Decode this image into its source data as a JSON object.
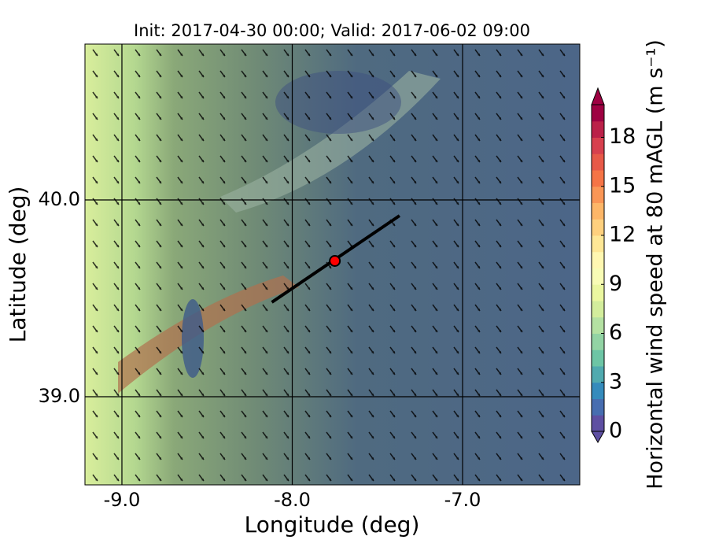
{
  "chart_data": {
    "type": "contourf-map",
    "title": "Init: 2017-04-30 00:00; Valid: 2017-06-02 09:00",
    "xlabel": "Longitude (deg)",
    "ylabel": "Latitude (deg)",
    "xlim": [
      -9.217,
      -6.312
    ],
    "ylim": [
      38.552,
      40.792
    ],
    "xticks": [
      {
        "value": -9,
        "label": "-9.0"
      },
      {
        "value": -8,
        "label": "-8.0"
      },
      {
        "value": -7,
        "label": "-7.0"
      }
    ],
    "yticks": [
      {
        "value": 39,
        "label": "39.0"
      },
      {
        "value": 40,
        "label": "40.0"
      }
    ],
    "grid": true,
    "transect": {
      "start": [
        -8.12,
        39.48
      ],
      "end": [
        -7.37,
        39.92
      ],
      "color": "#000000"
    },
    "site": {
      "lon": -7.75,
      "lat": 39.69,
      "color": "#ff0000"
    },
    "colorbar": {
      "label": "Horizontal wind speed at 80 mAGL (m s⁻¹)",
      "clim": [
        0,
        20
      ],
      "levels": [
        0,
        1,
        2,
        3,
        4,
        5,
        6,
        7,
        8,
        9,
        10,
        11,
        12,
        13,
        14,
        15,
        16,
        17,
        18,
        19,
        20
      ],
      "ticks": [
        0,
        3,
        6,
        9,
        12,
        15,
        18
      ],
      "colormap": [
        "#5e4fa2",
        "#3288bd",
        "#66c2a5",
        "#abdda4",
        "#e6f598",
        "#ffffbf",
        "#fee08b",
        "#fdae61",
        "#f46d43",
        "#d53e4f",
        "#9e0142"
      ]
    }
  }
}
